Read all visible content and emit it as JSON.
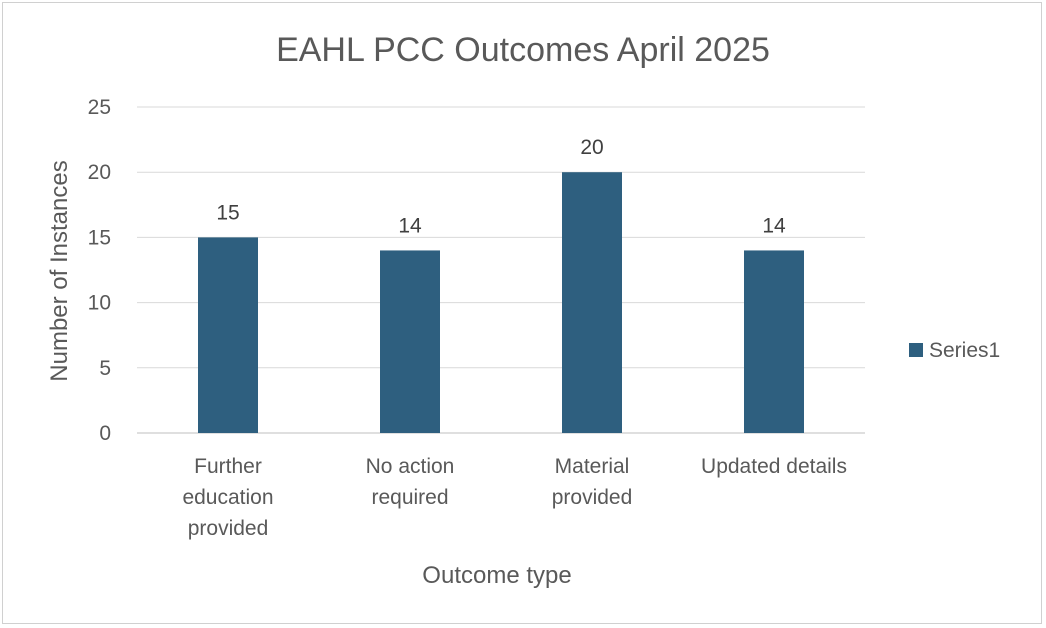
{
  "chart_data": {
    "type": "bar",
    "title": "EAHL PCC Outcomes April 2025",
    "xlabel": "Outcome type",
    "ylabel": "Number of Instances",
    "categories": [
      [
        "Further",
        "education",
        "provided"
      ],
      [
        "No action",
        "required"
      ],
      [
        "Material",
        "provided"
      ],
      [
        "Updated details"
      ]
    ],
    "series": [
      {
        "name": "Series1",
        "values": [
          15,
          14,
          20,
          14
        ],
        "color": "#2e5f7f"
      }
    ],
    "ylim": [
      0,
      25
    ],
    "yticks": [
      0,
      5,
      10,
      15,
      20,
      25
    ],
    "grid": true,
    "data_labels": true,
    "legend": "right"
  }
}
